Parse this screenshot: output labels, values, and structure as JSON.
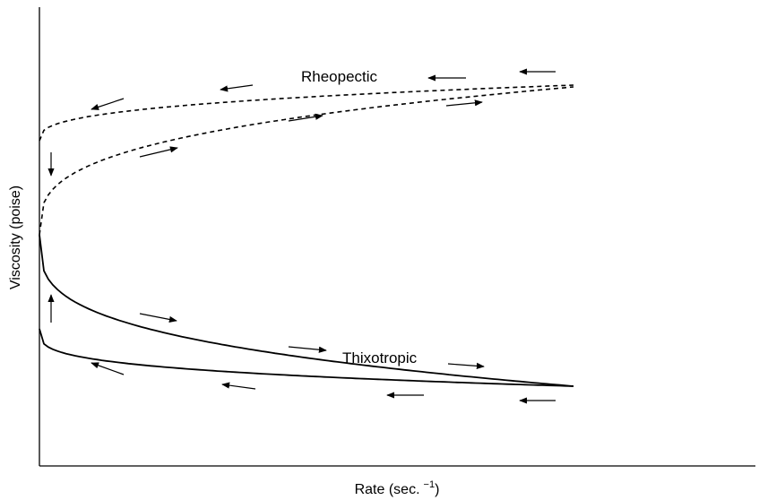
{
  "chart_data": {
    "type": "line",
    "title": "",
    "xlabel": "Rate (sec.",
    "xlabel_exponent": "−1",
    "xlabel_close": ")",
    "ylabel": "Viscosity (poise)",
    "grid": false,
    "legend": "none",
    "ticks": "none",
    "series": [
      {
        "name": "Rheopectic",
        "style": "dashed",
        "branch": "increasing-rate"
      },
      {
        "name": "Rheopectic",
        "style": "dashed",
        "branch": "decreasing-rate"
      },
      {
        "name": "Thixotropic",
        "style": "solid",
        "branch": "increasing-rate"
      },
      {
        "name": "Thixotropic",
        "style": "solid",
        "branch": "decreasing-rate"
      }
    ],
    "annotations": [
      {
        "text": "Rheopectic"
      },
      {
        "text": "Thixotropic"
      }
    ],
    "colors": {
      "line": "#000000",
      "background": "#ffffff"
    }
  }
}
